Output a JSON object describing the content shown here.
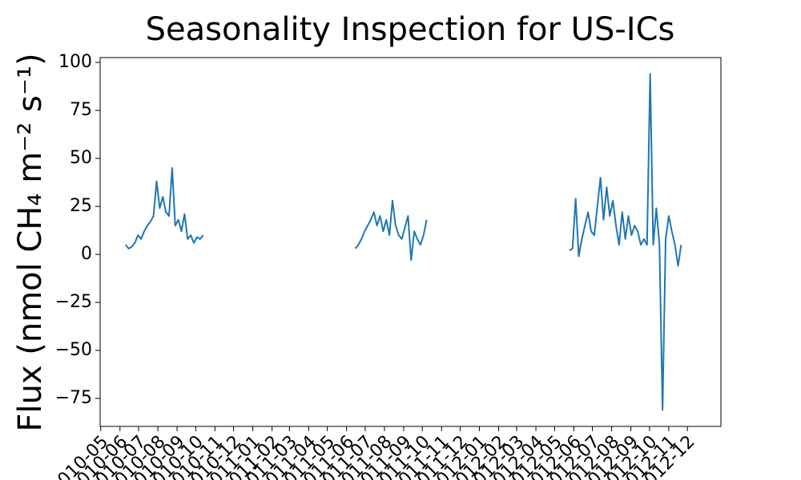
{
  "chart_data": {
    "type": "line",
    "title": "Seasonality Inspection for US-ICs",
    "y_label": "Flux (nmol CH₄ m⁻² s⁻¹)",
    "color": "#1f77b4",
    "x": [
      "2010-06-10",
      "2010-06-15",
      "2010-06-20",
      "2010-06-25",
      "2010-06-30",
      "2010-07-05",
      "2010-07-10",
      "2010-07-15",
      "2010-07-20",
      "2010-07-25",
      "2010-07-30",
      "2010-08-04",
      "2010-08-09",
      "2010-08-14",
      "2010-08-19",
      "2010-08-24",
      "2010-08-29",
      "2010-09-03",
      "2010-09-08",
      "2010-09-13",
      "2010-09-18",
      "2010-09-23",
      "2010-09-28",
      "2010-10-03",
      "2010-10-08",
      "2010-10-13",
      "2011-01-01",
      "2011-06-15",
      "2011-06-20",
      "2011-06-25",
      "2011-06-30",
      "2011-07-05",
      "2011-07-10",
      "2011-07-15",
      "2011-07-20",
      "2011-07-25",
      "2011-07-30",
      "2011-08-04",
      "2011-08-09",
      "2011-08-14",
      "2011-08-19",
      "2011-08-24",
      "2011-08-29",
      "2011-09-03",
      "2011-09-08",
      "2011-09-13",
      "2011-09-18",
      "2011-09-23",
      "2011-09-28",
      "2011-10-03",
      "2011-10-08",
      "2012-01-01",
      "2012-05-25",
      "2012-05-30",
      "2012-06-04",
      "2012-06-09",
      "2012-06-14",
      "2012-06-19",
      "2012-06-24",
      "2012-06-29",
      "2012-07-04",
      "2012-07-09",
      "2012-07-14",
      "2012-07-19",
      "2012-07-24",
      "2012-07-29",
      "2012-08-03",
      "2012-08-08",
      "2012-08-13",
      "2012-08-18",
      "2012-08-23",
      "2012-08-28",
      "2012-09-02",
      "2012-09-07",
      "2012-09-12",
      "2012-09-17",
      "2012-09-22",
      "2012-09-27",
      "2012-10-02",
      "2012-10-07",
      "2012-10-12",
      "2012-10-17",
      "2012-10-22",
      "2012-10-27",
      "2012-11-01",
      "2012-11-06",
      "2012-11-11",
      "2012-11-16",
      "2012-11-21"
    ],
    "values": [
      5,
      3,
      4,
      6,
      10,
      8,
      12,
      15,
      17,
      20,
      38,
      24,
      30,
      22,
      20,
      45,
      15,
      18,
      12,
      21,
      8,
      10,
      6,
      9,
      8,
      10,
      null,
      3,
      5,
      8,
      12,
      15,
      18,
      22,
      15,
      20,
      12,
      18,
      10,
      28,
      15,
      10,
      8,
      14,
      20,
      -3,
      12,
      8,
      5,
      10,
      18,
      null,
      2,
      3,
      29,
      -1,
      8,
      15,
      22,
      12,
      10,
      25,
      40,
      18,
      35,
      20,
      28,
      15,
      5,
      22,
      8,
      20,
      10,
      15,
      12,
      5,
      8,
      5,
      94,
      5,
      24,
      5,
      -81,
      8,
      20,
      12,
      5,
      -6,
      5
    ],
    "xlim": [
      "2010-04-30",
      "2013-01-24"
    ],
    "xticks": [
      {
        "value": "2010-05-01",
        "label": "2010-05"
      },
      {
        "value": "2010-06-01",
        "label": "2010-06"
      },
      {
        "value": "2010-07-01",
        "label": "2010-07"
      },
      {
        "value": "2010-08-01",
        "label": "2010-08"
      },
      {
        "value": "2010-09-01",
        "label": "2010-09"
      },
      {
        "value": "2010-10-01",
        "label": "2010-10"
      },
      {
        "value": "2010-11-01",
        "label": "2010-11"
      },
      {
        "value": "2010-12-01",
        "label": "2010-12"
      },
      {
        "value": "2011-01-01",
        "label": "2011-01"
      },
      {
        "value": "2011-02-01",
        "label": "2011-02"
      },
      {
        "value": "2011-03-01",
        "label": "2011-03"
      },
      {
        "value": "2011-04-01",
        "label": "2011-04"
      },
      {
        "value": "2011-05-01",
        "label": "2011-05"
      },
      {
        "value": "2011-06-01",
        "label": "2011-06"
      },
      {
        "value": "2011-07-01",
        "label": "2011-07"
      },
      {
        "value": "2011-08-01",
        "label": "2011-08"
      },
      {
        "value": "2011-09-01",
        "label": "2011-09"
      },
      {
        "value": "2011-10-01",
        "label": "2011-10"
      },
      {
        "value": "2011-11-01",
        "label": "2011-11"
      },
      {
        "value": "2011-12-01",
        "label": "2011-12"
      },
      {
        "value": "2012-01-01",
        "label": "2012-01"
      },
      {
        "value": "2012-02-01",
        "label": "2012-02"
      },
      {
        "value": "2012-03-01",
        "label": "2012-03"
      },
      {
        "value": "2012-04-01",
        "label": "2012-04"
      },
      {
        "value": "2012-05-01",
        "label": "2012-05"
      },
      {
        "value": "2012-06-01",
        "label": "2012-06"
      },
      {
        "value": "2012-07-01",
        "label": "2012-07"
      },
      {
        "value": "2012-08-01",
        "label": "2012-08"
      },
      {
        "value": "2012-09-01",
        "label": "2012-09"
      },
      {
        "value": "2012-10-01",
        "label": "2012-10"
      },
      {
        "value": "2012-11-01",
        "label": "2012-11"
      },
      {
        "value": "2012-12-01",
        "label": "2012-12"
      }
    ],
    "ylim": [
      -89.6,
      102.5
    ],
    "yticks": [
      {
        "value": -75,
        "label": "−75"
      },
      {
        "value": -50,
        "label": "−50"
      },
      {
        "value": -25,
        "label": "−25"
      },
      0,
      25,
      50,
      75,
      100
    ],
    "grid": false
  }
}
